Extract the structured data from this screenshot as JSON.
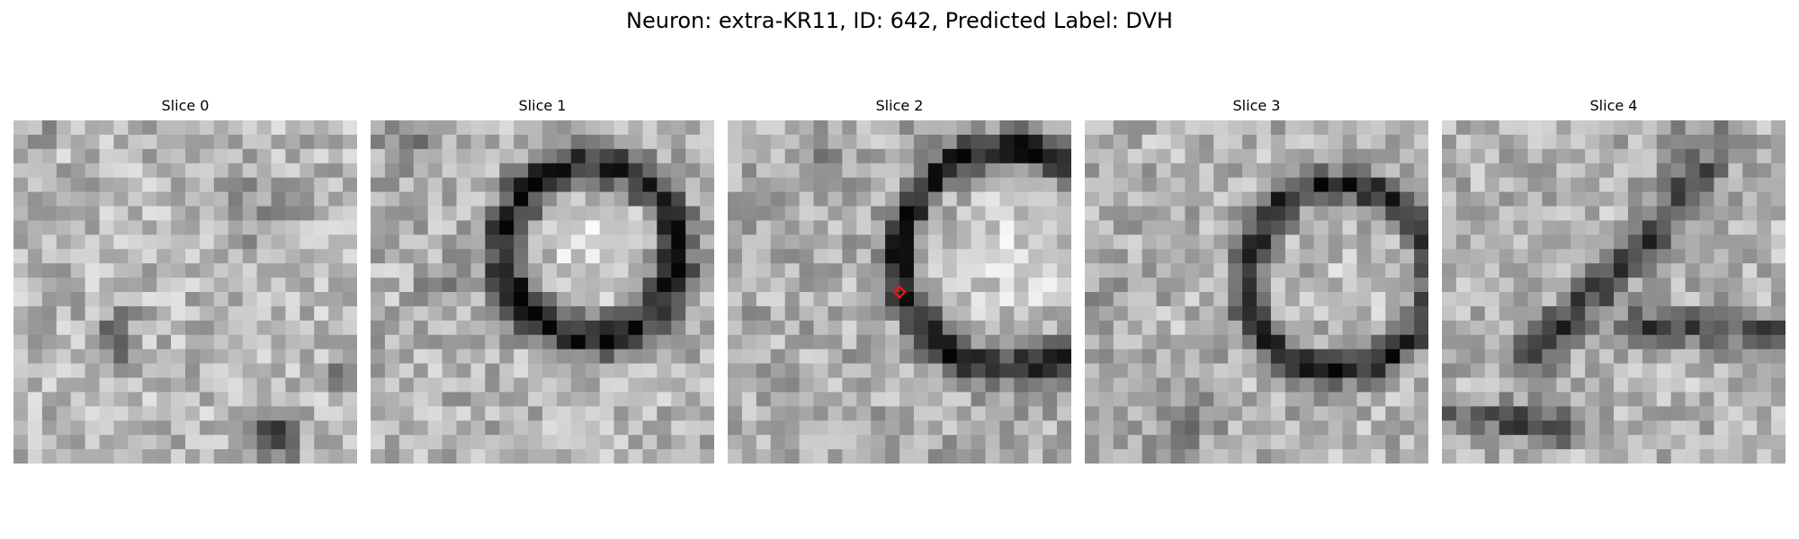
{
  "figure": {
    "title": "Neuron: extra-KR11, ID: 642, Predicted Label: DVH"
  },
  "slices": [
    {
      "title": "Slice 0",
      "content": "noisy gray texture with a small dark spot left of center and a dark blotch bottom right"
    },
    {
      "title": "Slice 1",
      "content": "dark ring around a bright round cell body, upper right of center"
    },
    {
      "title": "Slice 2",
      "content": "dark arc around a bright round region on the right, with a red diamond marker"
    },
    {
      "title": "Slice 3",
      "content": "dark ring around a mottled round region, lower right of center"
    },
    {
      "title": "Slice 4",
      "content": "diagonal dark band crossing the panel, dark patches bottom left and right"
    }
  ],
  "marker": {
    "color": "#e8141c",
    "shape": "diamond",
    "slice_index": 2
  }
}
